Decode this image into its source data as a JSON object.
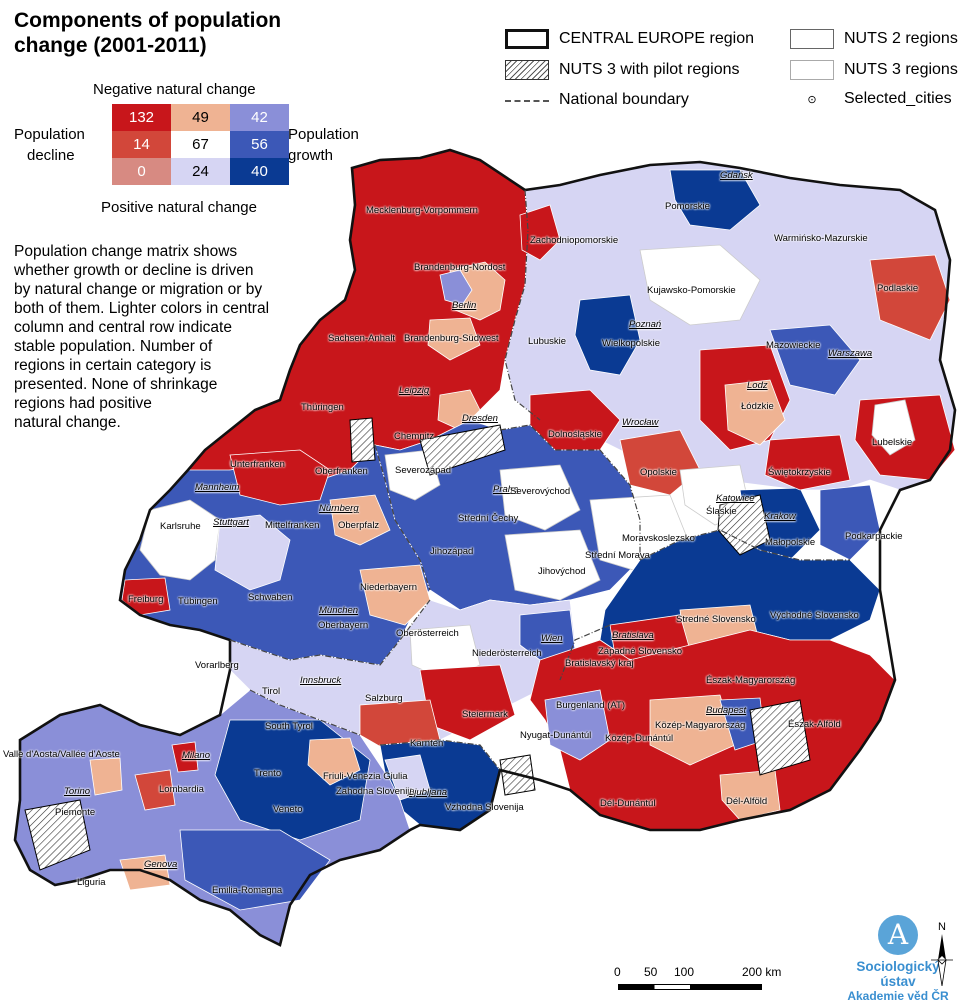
{
  "title": {
    "line1": "Components of population",
    "line2": "change (2001-2011)"
  },
  "matrix": {
    "top_label": "Negative natural change",
    "bottom_label": "Positive natural change",
    "left_label_1": "Population",
    "left_label_2": "decline",
    "right_label_1": "Population",
    "right_label_2": "growth",
    "rows": [
      [
        {
          "v": "132",
          "c": "#c8161b"
        },
        {
          "v": "49",
          "c": "#efb393"
        },
        {
          "v": "42",
          "c": "#8a8fd8"
        }
      ],
      [
        {
          "v": "14",
          "c": "#d2473a"
        },
        {
          "v": "67",
          "c": "#ffffff"
        },
        {
          "v": "56",
          "c": "#3c58b7"
        }
      ],
      [
        {
          "v": "0",
          "c": "#d78a82"
        },
        {
          "v": "24",
          "c": "#d6d5f3"
        },
        {
          "v": "40",
          "c": "#0a3a93"
        }
      ]
    ]
  },
  "description": [
    "Population change matrix shows",
    "whether growth or decline is driven",
    "by natural change or migration or by",
    "both of them. Lighter colors in central",
    "column and central row indicate",
    "stable population. Number of",
    "regions in certain category is",
    "presented. None of shrinkage",
    "regions had positive",
    "natural change."
  ],
  "legend": {
    "central_europe": "CENTRAL EUROPE region",
    "pilot": "NUTS 3 with pilot regions",
    "national_boundary": "National boundary",
    "nuts2": "NUTS 2 regions",
    "nuts3": "NUTS 3 regions",
    "cities": "Selected_cities"
  },
  "colors": {
    "dark_red": "#c8161b",
    "mid_red": "#d2473a",
    "peach": "#efb393",
    "white": "#ffffff",
    "lavender": "#d6d5f3",
    "light_blue": "#8a8fd8",
    "mid_blue": "#3c58b7",
    "dark_blue": "#0a3a93"
  },
  "regions": [
    "Mecklenburg-Vorpommern",
    "Brandenburg-Nordost",
    "Berlin",
    "Sachsen-Anhalt",
    "Brandenburg-Südwest",
    "Leipzig",
    "Thüringen",
    "Dresden",
    "Chemnitz",
    "Unterfranken",
    "Oberfranken",
    "Mannheim",
    "Nürnberg",
    "Mittelfranken",
    "Oberpfalz",
    "Karlsruhe",
    "Stuttgart",
    "Freiburg",
    "Tübingen",
    "Schwaben",
    "Niederbayern",
    "München",
    "Oberbayern",
    "Vorarlberg",
    "Tirol",
    "Innsbruck",
    "Salzburg",
    "Oberösterreich",
    "Niederösterreich",
    "Wien",
    "Burgenland (AT)",
    "Steiermark",
    "Kärnten",
    "South Tyrol",
    "Trento",
    "Veneto",
    "Friuli-Venezia Giulia",
    "Valle d'Aosta/Vallée d'Aoste",
    "Milano",
    "Lombardia",
    "Torino",
    "Piemonte",
    "Genova",
    "Liguria",
    "Emilia-Romagna",
    "Zahodna Slovenija",
    "Ljubljana",
    "Vzhodna Slovenija",
    "Severozápad",
    "Praha",
    "Severovýchod",
    "Střední Čechy",
    "Jihozápad",
    "Jihovýchod",
    "Střední Morava",
    "Moravskoslezsko",
    "Západné Slovensko",
    "Bratislava",
    "Bratislavský kraj",
    "Stredné Slovensko",
    "Východné Slovensko",
    "Nyugat-Dunántúl",
    "Közép-Dunántúl",
    "Közép-Magyarország",
    "Budapest",
    "Észak-Magyarország",
    "Észak-Alföld",
    "Dél-Dunántúl",
    "Dél-Alföld",
    "Zachodniopomorskie",
    "Pomorskie",
    "Gdańsk",
    "Warmińsko-Mazurskie",
    "Podlaskie",
    "Kujawsko-Pomorskie",
    "Poznań",
    "Wielkopolskie",
    "Lubuskie",
    "Mazowieckie",
    "Warszawa",
    "Lodz",
    "Łódzkie",
    "Dolnośląskie",
    "Wrocław",
    "Opolskie",
    "Lubelskie",
    "Świętokrzyskie",
    "Śląskie",
    "Katowice",
    "Krakow",
    "Małopolskie",
    "Podkarpackie"
  ],
  "scale": {
    "l0": "0",
    "l50": "50",
    "l100": "100",
    "l200": "200 km"
  },
  "north": "N",
  "logo": {
    "name": "Sociologický ústav",
    "sub": "Akademie věd ČR"
  }
}
